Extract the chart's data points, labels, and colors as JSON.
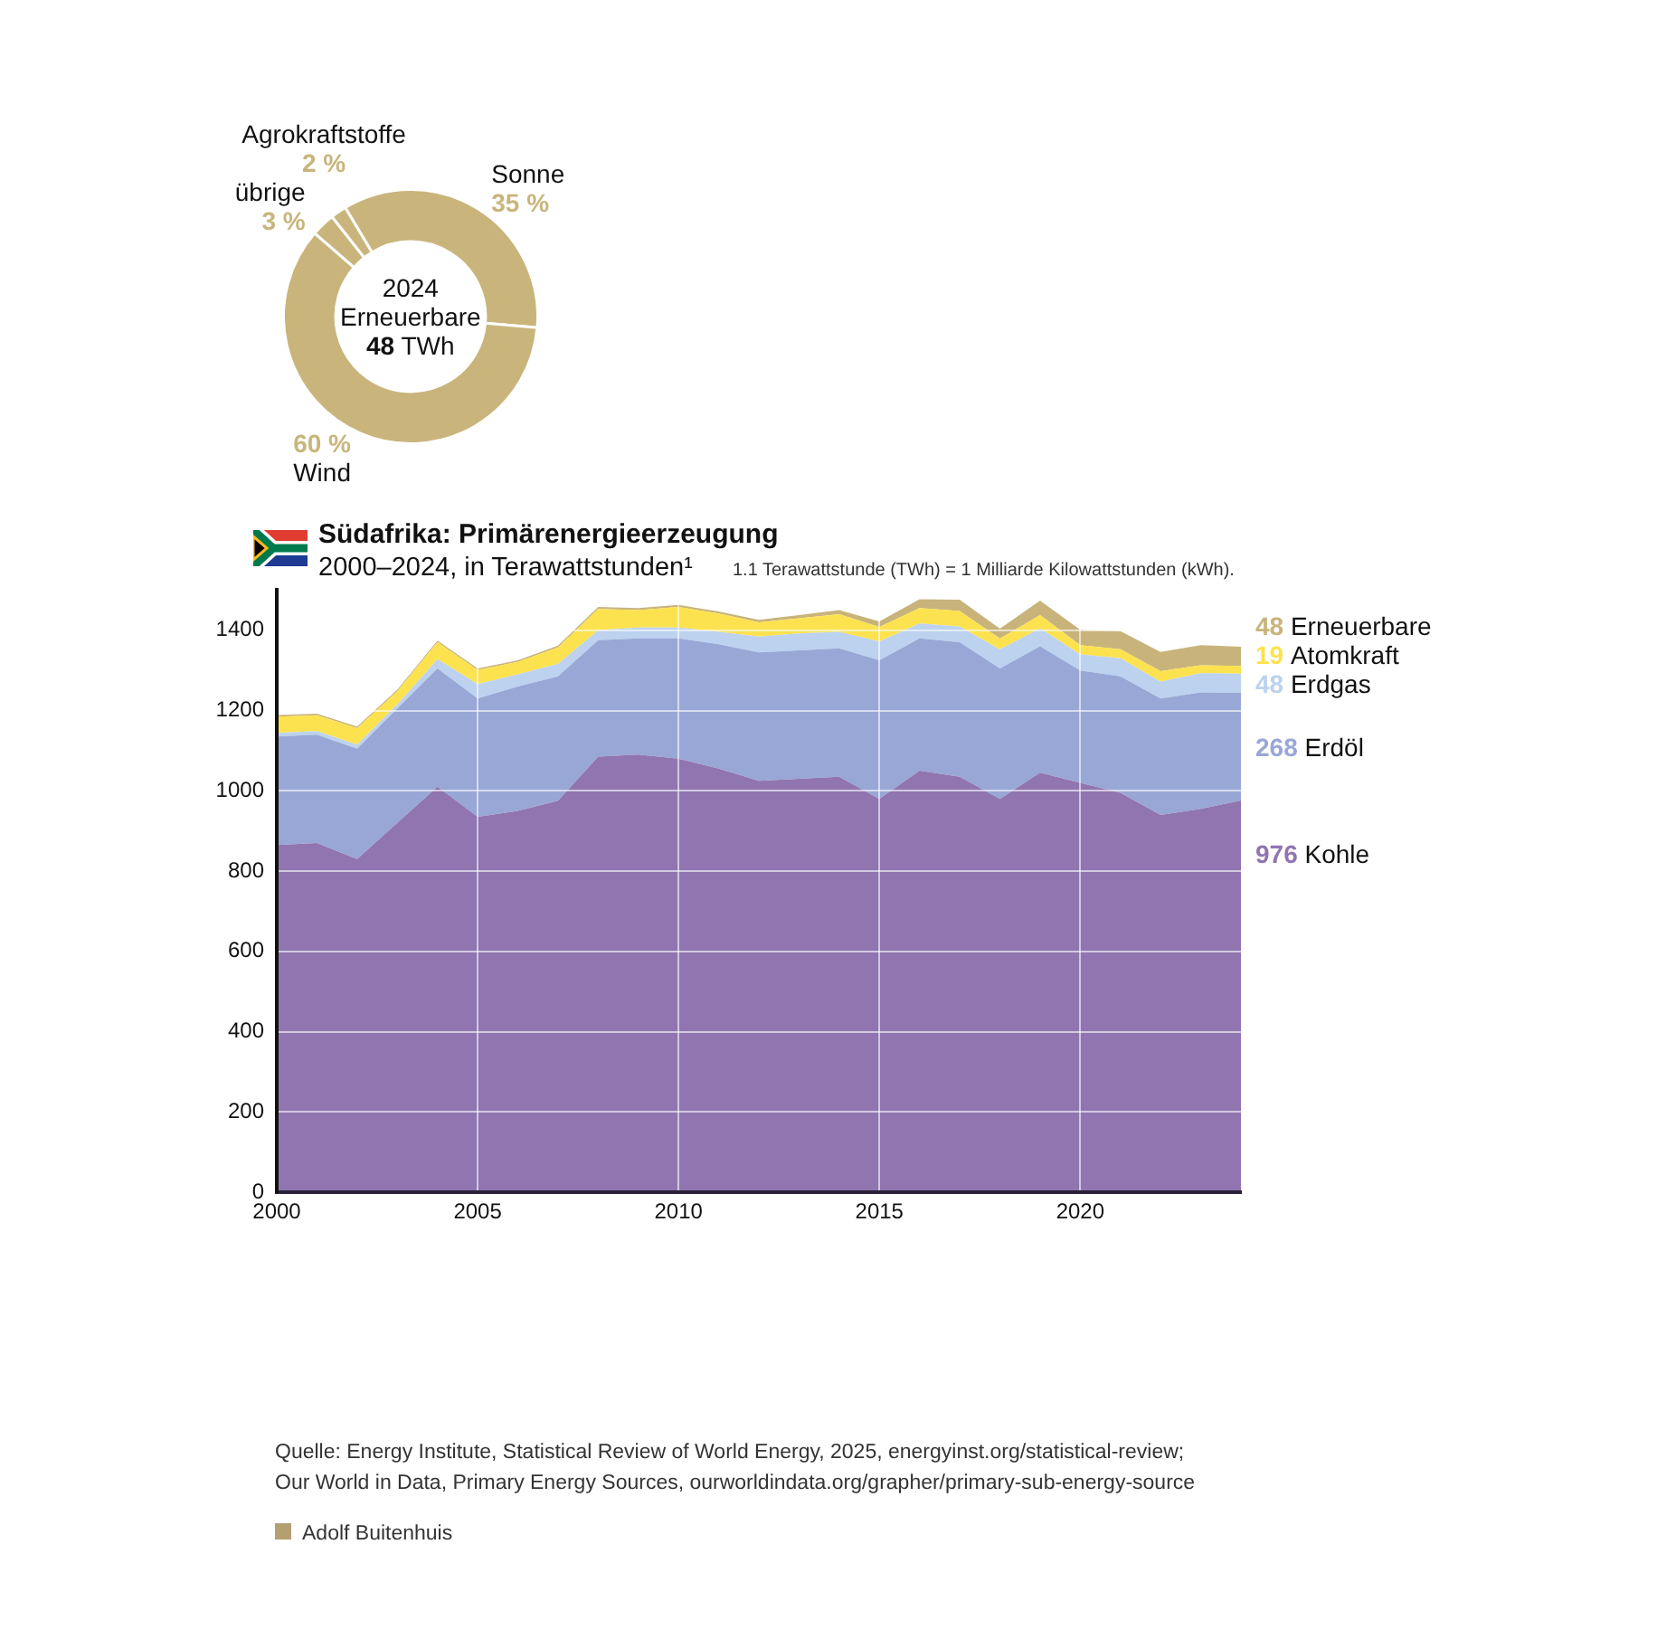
{
  "chart_data": [
    {
      "type": "donut",
      "annotations": [
        "2024",
        "Erneuerbare",
        "48 TWh"
      ],
      "categories": [
        "Sonne",
        "Wind",
        "übrige",
        "Agrokraftstoffe"
      ],
      "values": [
        35,
        60,
        3,
        2
      ],
      "colors": [
        "#c9b57c",
        "#c9b57c",
        "#c9b57c",
        "#c9b57c"
      ],
      "value_labels": [
        "35 %",
        "60 %",
        "3 %",
        "2 %"
      ]
    },
    {
      "type": "area",
      "title": "Südafrika: Primärenergieerzeugung",
      "subtitle": "2000–2024, in Terawattstunden¹",
      "annotations": [
        "1.1 Terawattstunde (TWh) = 1 Milliarde Kilowattstunden (kWh).",
        "Quelle: Energy Institute, Statistical Review of World Energy, 2025, energyinst.org/statistical-review;",
        "Our World in Data, Primary Energy Sources, ourworldindata.org/grapher/primary-sub-energy-source",
        "Adolf Buitenhuis"
      ],
      "x": [
        2000,
        2001,
        2002,
        2003,
        2004,
        2005,
        2006,
        2007,
        2008,
        2009,
        2010,
        2011,
        2012,
        2013,
        2014,
        2015,
        2016,
        2017,
        2018,
        2019,
        2020,
        2021,
        2022,
        2023,
        2024
      ],
      "stacked": true,
      "xlim": [
        2000,
        2024
      ],
      "xticks": [
        2000,
        2005,
        2010,
        2015,
        2020
      ],
      "ylim": [
        0,
        1500
      ],
      "yticks": [
        0,
        200,
        400,
        600,
        800,
        1000,
        1200,
        1400
      ],
      "grid": true,
      "series": [
        {
          "name": "Kohle",
          "color": "#9075b0",
          "values": [
            865,
            870,
            830,
            920,
            1010,
            935,
            950,
            975,
            1085,
            1090,
            1080,
            1055,
            1025,
            1030,
            1035,
            980,
            1050,
            1035,
            980,
            1045,
            1020,
            995,
            940,
            955,
            976
          ],
          "value_labels": [
            null,
            null,
            null,
            null,
            null,
            null,
            null,
            null,
            null,
            null,
            null,
            null,
            null,
            null,
            null,
            null,
            null,
            null,
            null,
            null,
            null,
            null,
            null,
            null,
            "976"
          ]
        },
        {
          "name": "Erdöl",
          "color": "#98a7d6",
          "values": [
            270,
            270,
            275,
            285,
            295,
            295,
            310,
            310,
            290,
            290,
            300,
            310,
            320,
            320,
            320,
            345,
            330,
            335,
            325,
            315,
            280,
            290,
            290,
            290,
            268
          ],
          "value_labels": [
            null,
            null,
            null,
            null,
            null,
            null,
            null,
            null,
            null,
            null,
            null,
            null,
            null,
            null,
            null,
            null,
            null,
            null,
            null,
            null,
            null,
            null,
            null,
            null,
            "268"
          ]
        },
        {
          "name": "Erdgas",
          "color": "#bcd2ef",
          "values": [
            9,
            9,
            10,
            10,
            23,
            36,
            30,
            31,
            25,
            27,
            27,
            31,
            39,
            42,
            41,
            47,
            37,
            39,
            47,
            45,
            40,
            45,
            42,
            48,
            48
          ],
          "value_labels": [
            null,
            null,
            null,
            null,
            null,
            null,
            null,
            null,
            null,
            null,
            null,
            null,
            null,
            null,
            null,
            null,
            null,
            null,
            null,
            null,
            null,
            null,
            null,
            null,
            "48"
          ]
        },
        {
          "name": "Atomkraft",
          "color": "#fde24f",
          "values": [
            41,
            39,
            41,
            33,
            42,
            35,
            31,
            41,
            53,
            43,
            51,
            46,
            36,
            38,
            44,
            36,
            38,
            39,
            27,
            33,
            23,
            23,
            26,
            20,
            19
          ],
          "value_labels": [
            null,
            null,
            null,
            null,
            null,
            null,
            null,
            null,
            null,
            null,
            null,
            null,
            null,
            null,
            null,
            null,
            null,
            null,
            null,
            null,
            null,
            null,
            null,
            null,
            "19"
          ]
        },
        {
          "name": "Erneuerbare",
          "color": "#c8b47b",
          "values": [
            4,
            4,
            4,
            4,
            4,
            4,
            4,
            5,
            5,
            5,
            5,
            5,
            6,
            8,
            10,
            14,
            22,
            28,
            25,
            36,
            38,
            45,
            48,
            50,
            48
          ],
          "value_labels": [
            null,
            null,
            null,
            null,
            null,
            null,
            null,
            null,
            null,
            null,
            null,
            null,
            null,
            null,
            null,
            null,
            null,
            null,
            null,
            null,
            null,
            null,
            null,
            null,
            "48"
          ]
        }
      ]
    }
  ]
}
